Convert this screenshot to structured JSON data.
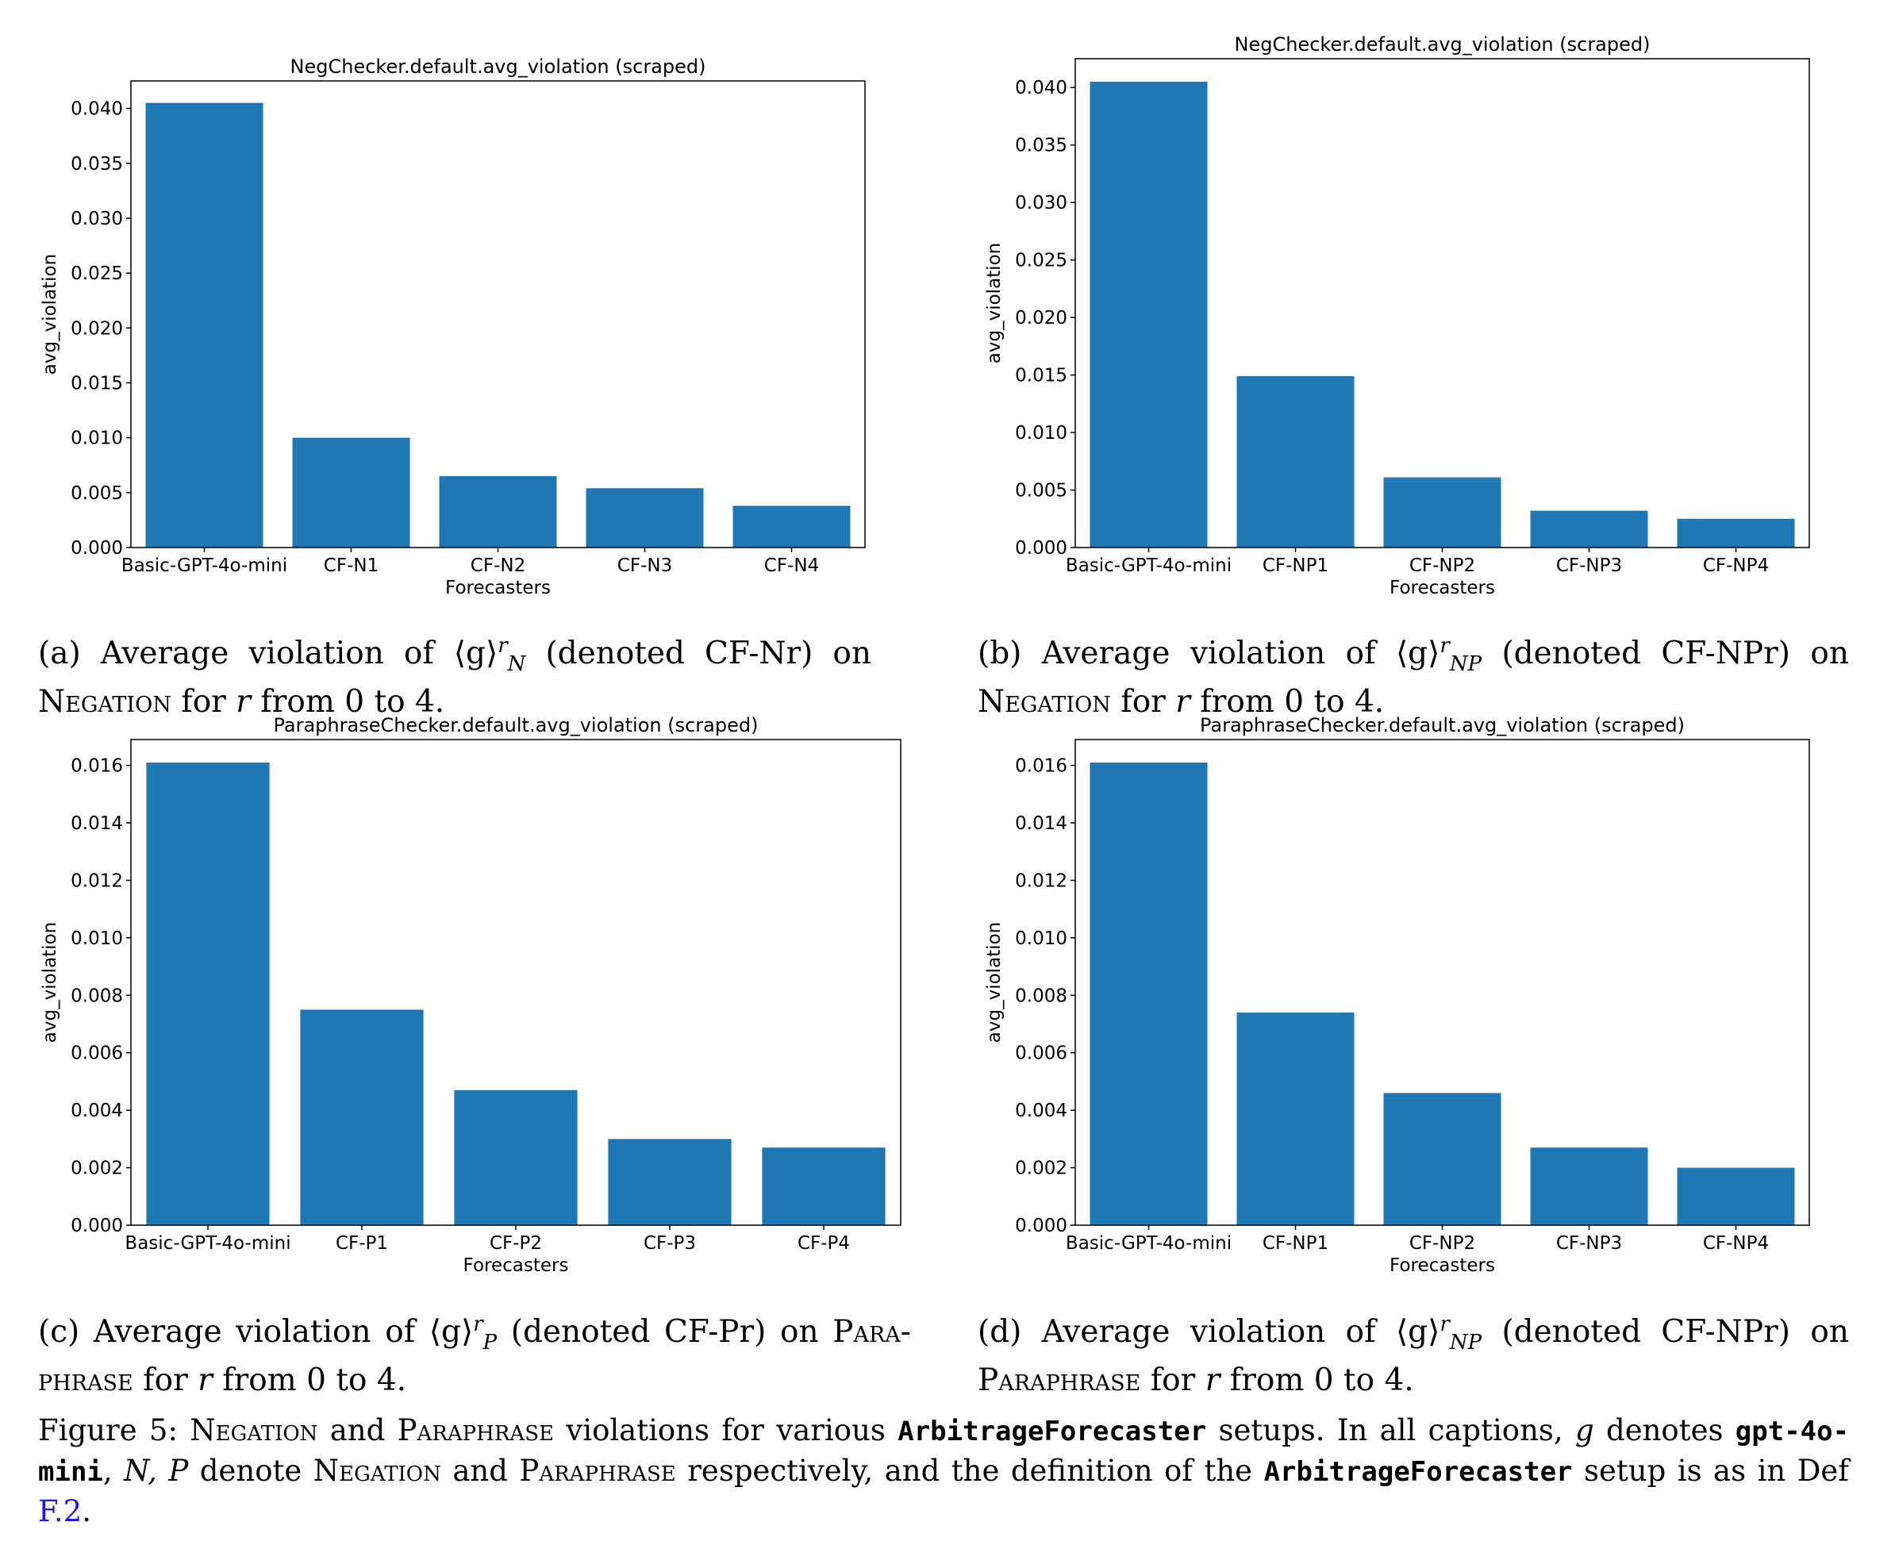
{
  "chart_data": [
    {
      "type": "bar",
      "title": "NegChecker.default.avg_violation (scraped)",
      "xlabel": "Forecasters",
      "ylabel": "avg_violation",
      "categories": [
        "Basic-GPT-4o-mini",
        "CF-N1",
        "CF-N2",
        "CF-N3",
        "CF-N4"
      ],
      "values": [
        0.0405,
        0.01,
        0.0065,
        0.0054,
        0.0038
      ],
      "ylim": [
        0,
        0.0425
      ],
      "yticks": [
        0.0,
        0.005,
        0.01,
        0.015,
        0.02,
        0.025,
        0.03,
        0.035,
        0.04
      ],
      "ytick_labels": [
        "0.000",
        "0.005",
        "0.010",
        "0.015",
        "0.020",
        "0.025",
        "0.030",
        "0.035",
        "0.040"
      ],
      "bar_color": "#1f77b4",
      "grid": false
    },
    {
      "type": "bar",
      "title": "NegChecker.default.avg_violation (scraped)",
      "xlabel": "Forecasters",
      "ylabel": "avg_violation",
      "categories": [
        "Basic-GPT-4o-mini",
        "CF-NP1",
        "CF-NP2",
        "CF-NP3",
        "CF-NP4"
      ],
      "values": [
        0.0405,
        0.0149,
        0.0061,
        0.0032,
        0.0025
      ],
      "ylim": [
        0,
        0.0425
      ],
      "yticks": [
        0.0,
        0.005,
        0.01,
        0.015,
        0.02,
        0.025,
        0.03,
        0.035,
        0.04
      ],
      "ytick_labels": [
        "0.000",
        "0.005",
        "0.010",
        "0.015",
        "0.020",
        "0.025",
        "0.030",
        "0.035",
        "0.040"
      ],
      "bar_color": "#1f77b4",
      "grid": false
    },
    {
      "type": "bar",
      "title": "ParaphraseChecker.default.avg_violation (scraped)",
      "xlabel": "Forecasters",
      "ylabel": "avg_violation",
      "categories": [
        "Basic-GPT-4o-mini",
        "CF-P1",
        "CF-P2",
        "CF-P3",
        "CF-P4"
      ],
      "values": [
        0.0161,
        0.0075,
        0.0047,
        0.003,
        0.0027
      ],
      "ylim": [
        0,
        0.0169
      ],
      "yticks": [
        0.0,
        0.002,
        0.004,
        0.006,
        0.008,
        0.01,
        0.012,
        0.014,
        0.016
      ],
      "ytick_labels": [
        "0.000",
        "0.002",
        "0.004",
        "0.006",
        "0.008",
        "0.010",
        "0.012",
        "0.014",
        "0.016"
      ],
      "bar_color": "#1f77b4",
      "grid": false
    },
    {
      "type": "bar",
      "title": "ParaphraseChecker.default.avg_violation (scraped)",
      "xlabel": "Forecasters",
      "ylabel": "avg_violation",
      "categories": [
        "Basic-GPT-4o-mini",
        "CF-NP1",
        "CF-NP2",
        "CF-NP3",
        "CF-NP4"
      ],
      "values": [
        0.0161,
        0.0074,
        0.0046,
        0.0027,
        0.002
      ],
      "ylim": [
        0,
        0.0169
      ],
      "yticks": [
        0.0,
        0.002,
        0.004,
        0.006,
        0.008,
        0.01,
        0.012,
        0.014,
        0.016
      ],
      "ytick_labels": [
        "0.000",
        "0.002",
        "0.004",
        "0.006",
        "0.008",
        "0.010",
        "0.012",
        "0.014",
        "0.016"
      ],
      "bar_color": "#1f77b4",
      "grid": false
    }
  ],
  "captions": {
    "a": {
      "label": "(a)",
      "pre": "Average violation of",
      "math": "⟨g⟩",
      "sup": "r",
      "sub": "N",
      "post": "(denoted CF-Nr) on",
      "sc": "Negation",
      "rest": "for",
      "var": "r",
      "end": "from 0 to 4."
    },
    "b": {
      "label": "(b)",
      "pre": "Average violation of",
      "math": "⟨g⟩",
      "sup": "r",
      "sub": "NP",
      "post": "(denoted CF-NPr) on",
      "sc": "Negation",
      "rest": "for",
      "var": "r",
      "end": "from 0 to 4."
    },
    "c": {
      "label": "(c)",
      "pre": "Average violation of",
      "math": "⟨g⟩",
      "sup": "r",
      "sub": "P",
      "post": "(denoted CF-Pr) on",
      "sc": "Para-phrase",
      "rest": "for",
      "var": "r",
      "end": "from 0 to 4."
    },
    "d": {
      "label": "(d)",
      "pre": "Average violation of",
      "math": "⟨g⟩",
      "sup": "r",
      "sub": "NP",
      "post": "(denoted CF-NPr) on",
      "sc": "Paraphrase",
      "rest": "for",
      "var": "r",
      "end": "from 0 to 4."
    }
  },
  "figure_caption": {
    "label": "Figure 5:",
    "sc_negation": "Negation",
    "and1": "and",
    "sc_paraphrase": "Paraphrase",
    "t1": "violations for various",
    "code1": "ArbitrageForecaster",
    "t2": "setups. In all captions,",
    "var_g": "g",
    "t3": "denotes",
    "code2": "gpt-4o-mini",
    "t4": ",",
    "var_np": "N, P",
    "t5": "denote",
    "sc_negation2": "Negation",
    "and2": "and",
    "sc_paraphrase2": "Paraphrase",
    "t6": "respectively, and the definition of the",
    "code3": "ArbitrageForecaster",
    "t7": "setup is as in Def",
    "ref": "F.2",
    "t8": "."
  }
}
